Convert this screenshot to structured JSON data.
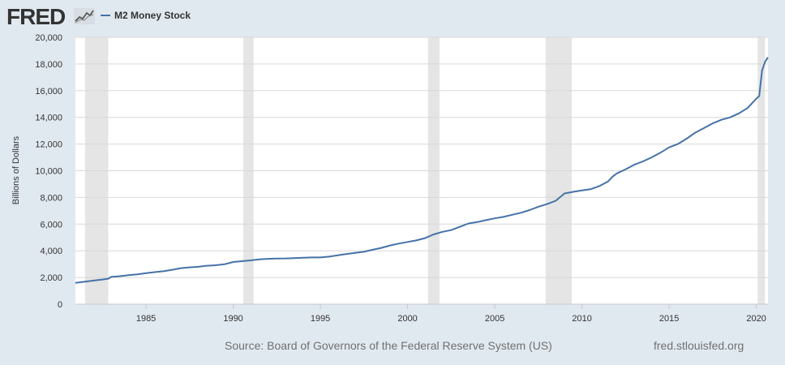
{
  "header": {
    "logo_text": "FRED",
    "logo_icon": "fred-chart-logo-icon"
  },
  "source": "Source: Board of Governors of the Federal Reserve System (US)",
  "site": "fred.stlouisfed.org",
  "chart_data": {
    "type": "line",
    "title": "",
    "xlabel": "",
    "ylabel": "Billions of Dollars",
    "xlim": [
      1980.95,
      2020.67
    ],
    "ylim": [
      0,
      20000
    ],
    "yticks": [
      0,
      2000,
      4000,
      6000,
      8000,
      10000,
      12000,
      14000,
      16000,
      18000,
      20000
    ],
    "ytick_labels": [
      "0",
      "2,000",
      "4,000",
      "6,000",
      "8,000",
      "10,000",
      "12,000",
      "14,000",
      "16,000",
      "18,000",
      "20,000"
    ],
    "xticks": [
      1985,
      1990,
      1995,
      2000,
      2005,
      2010,
      2015,
      2020
    ],
    "xtick_labels": [
      "1985",
      "1990",
      "1995",
      "2000",
      "2005",
      "2010",
      "2015",
      "2020"
    ],
    "grid": true,
    "legend_position": "top-left",
    "recessions": [
      [
        1981.5,
        1982.83
      ],
      [
        1990.58,
        1991.17
      ],
      [
        2001.17,
        2001.83
      ],
      [
        2007.92,
        2009.42
      ],
      [
        2020.08,
        2020.5
      ]
    ],
    "series": [
      {
        "name": "M2 Money Stock",
        "color": "#4572a7",
        "points": [
          [
            1980.95,
            1600
          ],
          [
            1981.5,
            1690
          ],
          [
            1982,
            1770
          ],
          [
            1982.5,
            1850
          ],
          [
            1982.83,
            1910
          ],
          [
            1983.0,
            2040
          ],
          [
            1983.5,
            2100
          ],
          [
            1984,
            2170
          ],
          [
            1984.5,
            2240
          ],
          [
            1985,
            2320
          ],
          [
            1985.5,
            2400
          ],
          [
            1986,
            2470
          ],
          [
            1986.5,
            2580
          ],
          [
            1987,
            2700
          ],
          [
            1987.5,
            2760
          ],
          [
            1988,
            2800
          ],
          [
            1988.5,
            2880
          ],
          [
            1989,
            2920
          ],
          [
            1989.5,
            2990
          ],
          [
            1990,
            3160
          ],
          [
            1990.5,
            3220
          ],
          [
            1991,
            3280
          ],
          [
            1991.5,
            3360
          ],
          [
            1992,
            3400
          ],
          [
            1992.5,
            3420
          ],
          [
            1993,
            3430
          ],
          [
            1993.5,
            3450
          ],
          [
            1994,
            3480
          ],
          [
            1994.5,
            3500
          ],
          [
            1995,
            3500
          ],
          [
            1995.5,
            3560
          ],
          [
            1996,
            3660
          ],
          [
            1996.5,
            3760
          ],
          [
            1997,
            3840
          ],
          [
            1997.5,
            3930
          ],
          [
            1998,
            4080
          ],
          [
            1998.5,
            4220
          ],
          [
            1999,
            4400
          ],
          [
            1999.5,
            4540
          ],
          [
            2000,
            4660
          ],
          [
            2000.5,
            4780
          ],
          [
            2001,
            4950
          ],
          [
            2001.5,
            5230
          ],
          [
            2002,
            5420
          ],
          [
            2002.5,
            5550
          ],
          [
            2003,
            5800
          ],
          [
            2003.5,
            6050
          ],
          [
            2004,
            6150
          ],
          [
            2004.5,
            6300
          ],
          [
            2005,
            6430
          ],
          [
            2005.5,
            6540
          ],
          [
            2006,
            6700
          ],
          [
            2006.5,
            6850
          ],
          [
            2007,
            7050
          ],
          [
            2007.5,
            7300
          ],
          [
            2008,
            7500
          ],
          [
            2008.5,
            7750
          ],
          [
            2009,
            8300
          ],
          [
            2009.5,
            8420
          ],
          [
            2010,
            8520
          ],
          [
            2010.5,
            8620
          ],
          [
            2011,
            8850
          ],
          [
            2011.5,
            9200
          ],
          [
            2011.75,
            9550
          ],
          [
            2012,
            9800
          ],
          [
            2012.5,
            10100
          ],
          [
            2013,
            10450
          ],
          [
            2013.5,
            10700
          ],
          [
            2014,
            11000
          ],
          [
            2014.5,
            11350
          ],
          [
            2015,
            11750
          ],
          [
            2015.5,
            12000
          ],
          [
            2016,
            12400
          ],
          [
            2016.5,
            12850
          ],
          [
            2017,
            13200
          ],
          [
            2017.5,
            13550
          ],
          [
            2018,
            13820
          ],
          [
            2018.5,
            14000
          ],
          [
            2019,
            14300
          ],
          [
            2019.5,
            14700
          ],
          [
            2020.0,
            15400
          ],
          [
            2020.17,
            15600
          ],
          [
            2020.33,
            17500
          ],
          [
            2020.5,
            18150
          ],
          [
            2020.67,
            18500
          ]
        ]
      }
    ]
  }
}
